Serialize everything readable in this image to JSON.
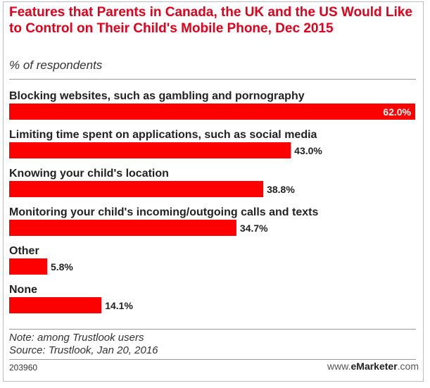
{
  "header": {
    "title": "Features that Parents in Canada, the UK and the US Would Like to Control on Their Child's Mobile Phone, Dec 2015",
    "subtitle": "% of respondents"
  },
  "chart_data": {
    "type": "bar",
    "orientation": "horizontal",
    "title": "Features that Parents in Canada, the UK and the US Would Like to Control on Their Child's Mobile Phone, Dec 2015",
    "subtitle": "% of respondents",
    "categories": [
      "Blocking websites, such as gambling and pornography",
      "Limiting time spent on applications, such as social media",
      "Knowing your child's location",
      "Monitoring your child's incoming/outgoing calls and texts",
      "Other",
      "None"
    ],
    "values": [
      62.0,
      43.0,
      38.8,
      34.7,
      5.8,
      14.1
    ],
    "value_labels": [
      "62.0%",
      "43.0%",
      "38.8%",
      "34.7%",
      "5.8%",
      "14.1%"
    ],
    "xlim": [
      0,
      62.0
    ],
    "bar_color": "#ff0000",
    "grid": false,
    "legend": "none"
  },
  "footer": {
    "note": "Note: among Trustlook users",
    "source": "Source: Trustlook, Jan 20, 2016",
    "chart_id": "203960",
    "brand_prefix": "www.",
    "brand_name": "eMarketer",
    "brand_suffix": ".com"
  },
  "colors": {
    "title": "#e3001b",
    "bar": "#ff0000",
    "inside_label": "#ffffff",
    "outside_label": "#222222"
  }
}
